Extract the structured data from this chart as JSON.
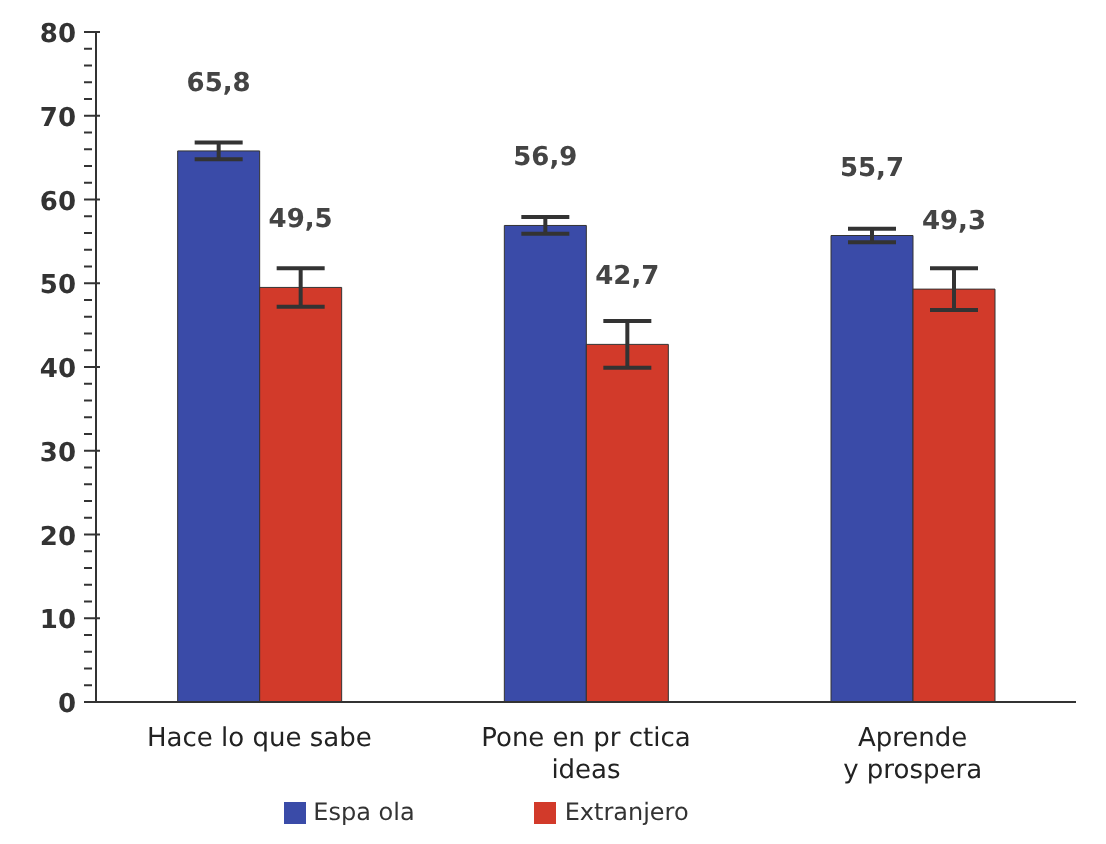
{
  "chart_data": {
    "type": "bar",
    "categories": [
      "Hace lo que sabe",
      "Pone en pr ctica\nideas",
      "Aprende\ny prospera"
    ],
    "series": [
      {
        "name": "Espa ola",
        "color": "#3a4ba8",
        "values": [
          65.8,
          56.9,
          55.7
        ],
        "value_labels": [
          "65,8",
          "56,9",
          "55,7"
        ],
        "errors": [
          1,
          1,
          0.8
        ]
      },
      {
        "name": "Extranjero",
        "color": "#d23a2a",
        "values": [
          49.5,
          42.7,
          49.3
        ],
        "value_labels": [
          "49,5",
          "42,7",
          "49,3"
        ],
        "errors": [
          2.3,
          2.8,
          2.5
        ]
      }
    ],
    "ylim": [
      0,
      80
    ],
    "yticks": [
      0,
      {
        "value": 2,
        "label": null
      },
      {
        "value": 4,
        "label": null
      },
      {
        "value": 6,
        "label": null
      },
      {
        "value": 8,
        "label": null
      },
      10,
      {
        "value": 12,
        "label": null
      },
      {
        "value": 14,
        "label": null
      },
      {
        "value": 16,
        "label": null
      },
      {
        "value": 18,
        "label": null
      },
      20,
      {
        "value": 22,
        "label": null
      },
      {
        "value": 24,
        "label": null
      },
      {
        "value": 26,
        "label": null
      },
      {
        "value": 28,
        "label": null
      },
      30,
      {
        "value": 32,
        "label": null
      },
      {
        "value": 34,
        "label": null
      },
      {
        "value": 36,
        "label": null
      },
      {
        "value": 38,
        "label": null
      },
      40,
      {
        "value": 42,
        "label": null
      },
      {
        "value": 44,
        "label": null
      },
      {
        "value": 46,
        "label": null
      },
      {
        "value": 48,
        "label": null
      },
      50,
      {
        "value": 52,
        "label": null
      },
      {
        "value": 54,
        "label": null
      },
      {
        "value": 56,
        "label": null
      },
      {
        "value": 58,
        "label": null
      },
      60,
      {
        "value": 62,
        "label": null
      },
      {
        "value": 64,
        "label": null
      },
      {
        "value": 66,
        "label": null
      },
      {
        "value": 68,
        "label": null
      },
      70,
      {
        "value": 72,
        "label": null
      },
      {
        "value": 74,
        "label": null
      },
      {
        "value": 76,
        "label": null
      },
      {
        "value": 78,
        "label": null
      },
      80
    ],
    "grid": false,
    "legend": "bottom"
  }
}
